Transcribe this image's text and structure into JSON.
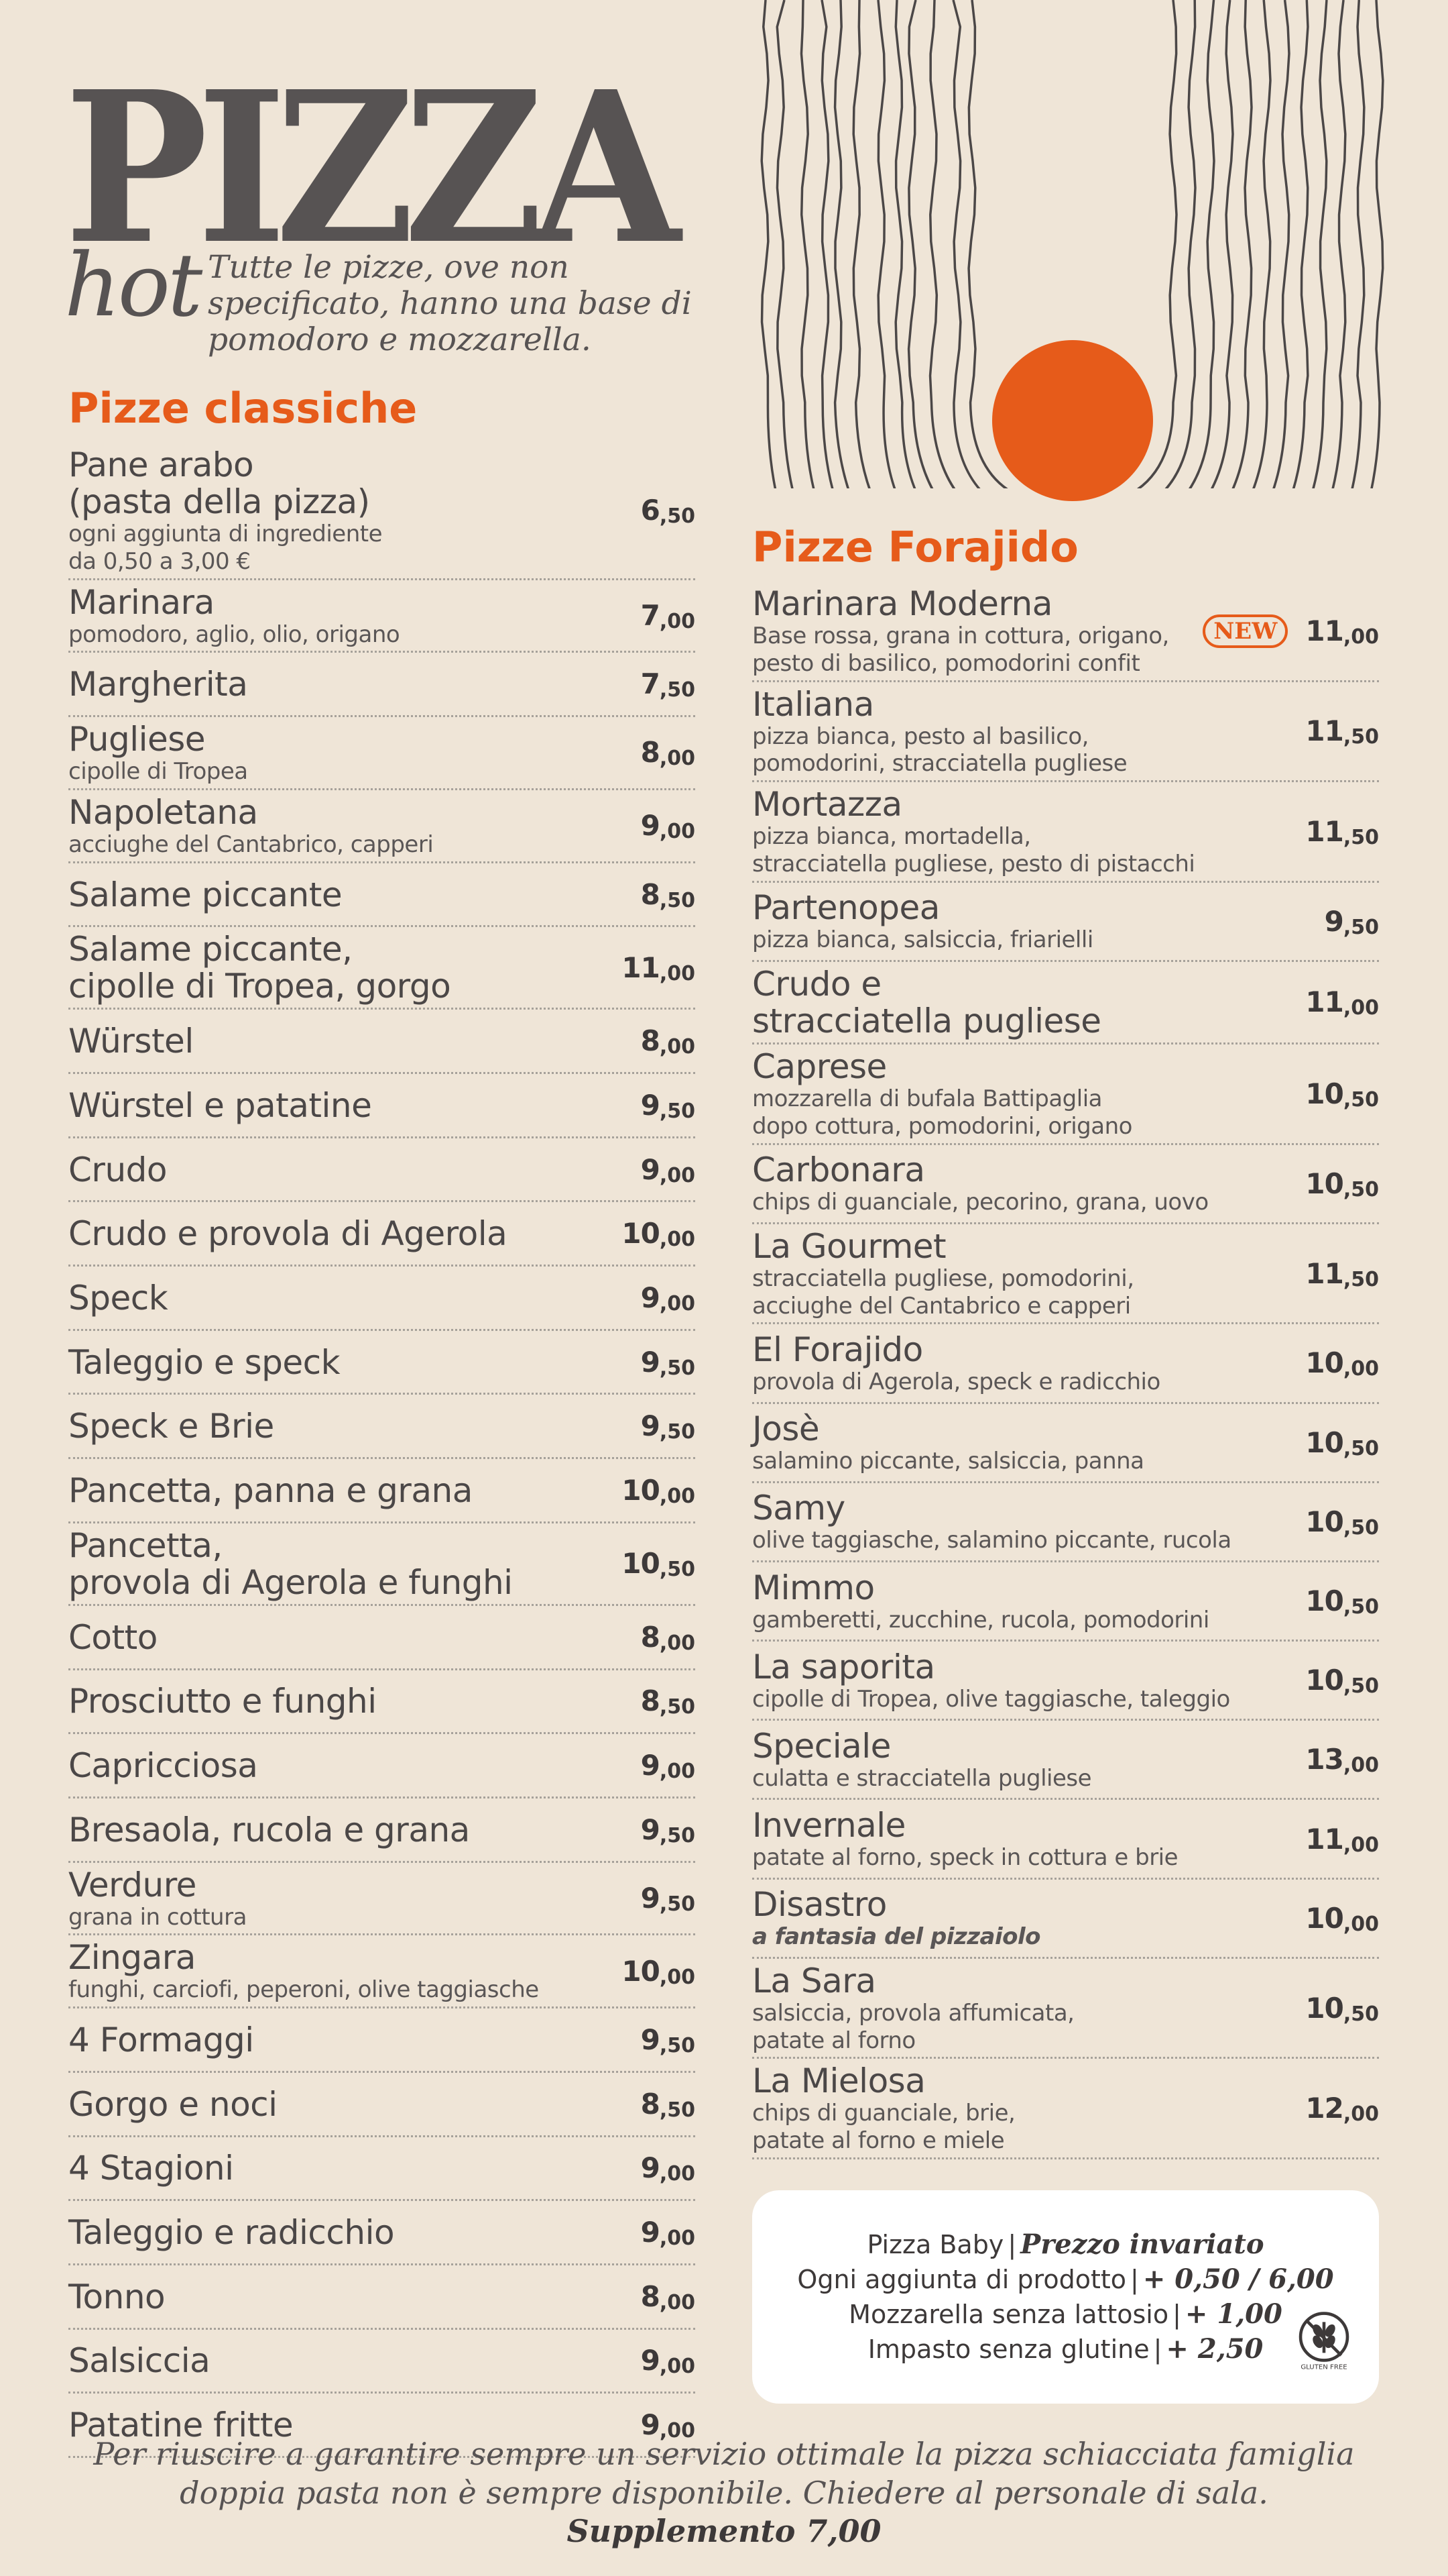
{
  "brand": {
    "title": "PIZZA",
    "subtitle": "hot",
    "intro": "Tutte le pizze, ove non specificato, hanno una base di pomodoro e mozzarella."
  },
  "colors": {
    "background": "#efe5d7",
    "accent": "#e65b1a",
    "text": "#4b4747",
    "panel": "#ffffff"
  },
  "classiche": {
    "title": "Pizze classiche",
    "items": [
      {
        "name": "Pane arabo\n(pasta della pizza)",
        "desc": "ogni aggiunta di ingrediente\nda 0,50 a 3,00 €",
        "price_int": "6",
        "price_dec": ",50"
      },
      {
        "name": "Marinara",
        "desc": "pomodoro, aglio, olio, origano",
        "price_int": "7",
        "price_dec": ",00"
      },
      {
        "name": "Margherita",
        "desc": "",
        "price_int": "7",
        "price_dec": ",50"
      },
      {
        "name": "Pugliese",
        "desc": "cipolle di Tropea",
        "price_int": "8",
        "price_dec": ",00"
      },
      {
        "name": "Napoletana",
        "desc": "acciughe del Cantabrico, capperi",
        "price_int": "9",
        "price_dec": ",00"
      },
      {
        "name": "Salame piccante",
        "desc": "",
        "price_int": "8",
        "price_dec": ",50"
      },
      {
        "name": "Salame piccante,\ncipolle di Tropea, gorgo",
        "desc": "",
        "price_int": "11",
        "price_dec": ",00"
      },
      {
        "name": "Würstel",
        "desc": "",
        "price_int": "8",
        "price_dec": ",00"
      },
      {
        "name": "Würstel e patatine",
        "desc": "",
        "price_int": "9",
        "price_dec": ",50"
      },
      {
        "name": "Crudo",
        "desc": "",
        "price_int": "9",
        "price_dec": ",00"
      },
      {
        "name": "Crudo e provola di Agerola",
        "desc": "",
        "price_int": "10",
        "price_dec": ",00"
      },
      {
        "name": "Speck",
        "desc": "",
        "price_int": "9",
        "price_dec": ",00"
      },
      {
        "name": "Taleggio e speck",
        "desc": "",
        "price_int": "9",
        "price_dec": ",50"
      },
      {
        "name": "Speck e Brie",
        "desc": "",
        "price_int": "9",
        "price_dec": ",50"
      },
      {
        "name": "Pancetta, panna e grana",
        "desc": "",
        "price_int": "10",
        "price_dec": ",00"
      },
      {
        "name": "Pancetta,\nprovola di Agerola e funghi",
        "desc": "",
        "price_int": "10",
        "price_dec": ",50"
      },
      {
        "name": "Cotto",
        "desc": "",
        "price_int": "8",
        "price_dec": ",00"
      },
      {
        "name": "Prosciutto e funghi",
        "desc": "",
        "price_int": "8",
        "price_dec": ",50"
      },
      {
        "name": "Capricciosa",
        "desc": "",
        "price_int": "9",
        "price_dec": ",00"
      },
      {
        "name": "Bresaola, rucola e grana",
        "desc": "",
        "price_int": "9",
        "price_dec": ",50"
      },
      {
        "name": "Verdure",
        "desc": "grana in cottura",
        "price_int": "9",
        "price_dec": ",50"
      },
      {
        "name": "Zingara",
        "desc": "funghi, carciofi, peperoni, olive taggiasche",
        "price_int": "10",
        "price_dec": ",00"
      },
      {
        "name": "4 Formaggi",
        "desc": "",
        "price_int": "9",
        "price_dec": ",50"
      },
      {
        "name": "Gorgo e noci",
        "desc": "",
        "price_int": "8",
        "price_dec": ",50"
      },
      {
        "name": "4 Stagioni",
        "desc": "",
        "price_int": "9",
        "price_dec": ",00"
      },
      {
        "name": "Taleggio e radicchio",
        "desc": "",
        "price_int": "9",
        "price_dec": ",00"
      },
      {
        "name": "Tonno",
        "desc": "",
        "price_int": "8",
        "price_dec": ",00"
      },
      {
        "name": "Salsiccia",
        "desc": "",
        "price_int": "9",
        "price_dec": ",00"
      },
      {
        "name": "Patatine fritte",
        "desc": "",
        "price_int": "9",
        "price_dec": ",00"
      }
    ]
  },
  "forajido": {
    "title": "Pizze Forajido",
    "items": [
      {
        "name": "Marinara Moderna",
        "desc": "Base rossa, grana in cottura, origano,\npesto di basilico, pomodorini confit",
        "badge": "NEW",
        "price_int": "11",
        "price_dec": ",00"
      },
      {
        "name": "Italiana",
        "desc": "pizza bianca, pesto al basilico,\npomodorini, stracciatella pugliese",
        "price_int": "11",
        "price_dec": ",50"
      },
      {
        "name": "Mortazza",
        "desc": "pizza bianca, mortadella,\nstracciatella pugliese, pesto di pistacchi",
        "price_int": "11",
        "price_dec": ",50"
      },
      {
        "name": "Partenopea",
        "desc": "pizza bianca, salsiccia, friarielli",
        "price_int": "9",
        "price_dec": ",50"
      },
      {
        "name": "Crudo e\nstracciatella pugliese",
        "desc": "",
        "price_int": "11",
        "price_dec": ",00"
      },
      {
        "name": "Caprese",
        "desc": "mozzarella di bufala Battipaglia\ndopo cottura, pomodorini, origano",
        "price_int": "10",
        "price_dec": ",50"
      },
      {
        "name": "Carbonara",
        "desc": "chips di guanciale, pecorino, grana, uovo",
        "price_int": "10",
        "price_dec": ",50"
      },
      {
        "name": "La Gourmet",
        "desc": "stracciatella pugliese, pomodorini,\nacciughe del Cantabrico e capperi",
        "price_int": "11",
        "price_dec": ",50"
      },
      {
        "name": "El Forajido",
        "desc": "provola di Agerola, speck e radicchio",
        "price_int": "10",
        "price_dec": ",00"
      },
      {
        "name": "Josè",
        "desc": "salamino piccante, salsiccia, panna",
        "price_int": "10",
        "price_dec": ",50"
      },
      {
        "name": "Samy",
        "desc": "olive taggiasche, salamino piccante, rucola",
        "price_int": "10",
        "price_dec": ",50"
      },
      {
        "name": "Mimmo",
        "desc": "gamberetti, zucchine, rucola, pomodorini",
        "price_int": "10",
        "price_dec": ",50"
      },
      {
        "name": "La saporita",
        "desc": "cipolle di Tropea, olive taggiasche, taleggio",
        "price_int": "10",
        "price_dec": ",50"
      },
      {
        "name": "Speciale",
        "desc": "culatta e stracciatella pugliese",
        "price_int": "13",
        "price_dec": ",00"
      },
      {
        "name": "Invernale",
        "desc": "patate al forno, speck in cottura e brie",
        "price_int": "11",
        "price_dec": ",00"
      },
      {
        "name": "Disastro",
        "desc": "a fantasia del pizzaiolo",
        "desc_strong": true,
        "price_int": "10",
        "price_dec": ",00"
      },
      {
        "name": "La Sara",
        "desc": "salsiccia, provola affumicata,\npatate al forno",
        "price_int": "10",
        "price_dec": ",50"
      },
      {
        "name": "La Mielosa",
        "desc": "chips di guanciale, brie,\npatate al forno e miele",
        "price_int": "12",
        "price_dec": ",00"
      }
    ]
  },
  "extras": {
    "rows": [
      {
        "label": "Pizza Baby",
        "value": "Prezzo invariato"
      },
      {
        "label": "Ogni aggiunta di prodotto",
        "value": "+ 0,50 / 6,00"
      },
      {
        "label": "Mozzarella senza lattosio",
        "value": "+ 1,00"
      },
      {
        "label": "Impasto senza glutine",
        "value": "+ 2,50"
      }
    ],
    "gluten_free_label": "GLUTEN FREE",
    "gluten_free_icon": "wheat-crossed-icon"
  },
  "footer": {
    "text": "Per riuscire a garantire sempre un servizio ottimale la pizza schiacciata famiglia doppia pasta non è sempre disponibile. Chiedere al personale di sala.",
    "supplement": "Supplemento 7,00"
  }
}
